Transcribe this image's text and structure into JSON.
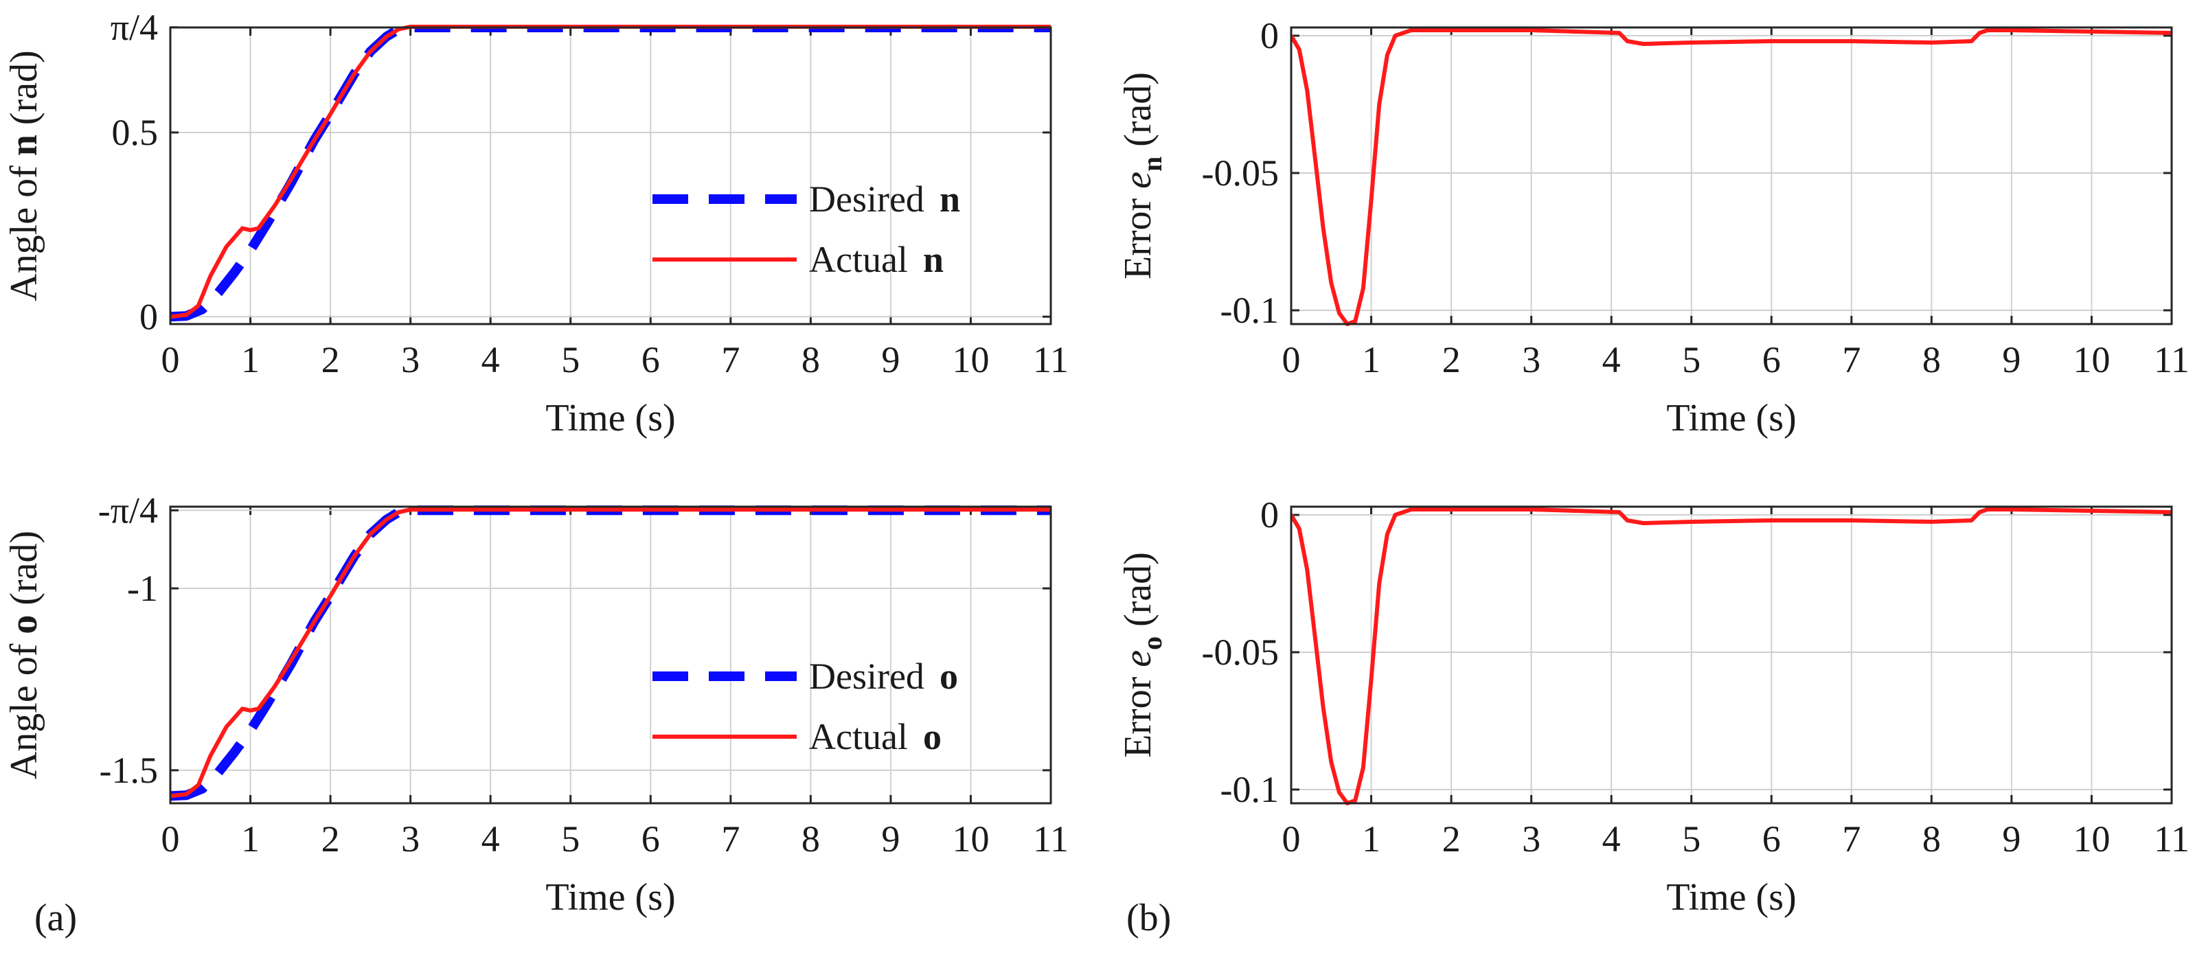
{
  "panel_labels": {
    "a": "(a)",
    "b": "(b)"
  },
  "colors": {
    "desired": "#0a0aff",
    "actual": "#ff1a1a"
  },
  "chart_data": [
    {
      "id": "a-top",
      "type": "line",
      "xlabel": "Time (s)",
      "ylabel": {
        "prefix": "Angle of ",
        "symbol": "n",
        "suffix": " (rad)"
      },
      "xlim": [
        0,
        11
      ],
      "ylim": [
        -0.02,
        0.785
      ],
      "xticks": [
        0,
        1,
        2,
        3,
        4,
        5,
        6,
        7,
        8,
        9,
        10,
        11
      ],
      "yticks": [
        {
          "v": 0,
          "label": "0"
        },
        {
          "v": 0.5,
          "label": "0.5"
        },
        {
          "v": 0.7854,
          "label": "π/4"
        }
      ],
      "grid": true,
      "legend": {
        "position": "bottom-right",
        "entries": [
          {
            "label": "Desired",
            "symbol": "n"
          },
          {
            "label": "Actual",
            "symbol": "n"
          }
        ]
      },
      "series": [
        {
          "name": "Desired n",
          "style": "dashed",
          "x": [
            0,
            0.2,
            0.4,
            0.6,
            0.8,
            1.0,
            1.2,
            1.5,
            1.8,
            2.0,
            2.3,
            2.5,
            2.7,
            2.85,
            3.0,
            4,
            5,
            6,
            7,
            8,
            9,
            10,
            11
          ],
          "y": [
            0,
            0.002,
            0.02,
            0.065,
            0.12,
            0.18,
            0.25,
            0.36,
            0.48,
            0.55,
            0.66,
            0.72,
            0.76,
            0.78,
            0.785,
            0.785,
            0.785,
            0.785,
            0.785,
            0.785,
            0.785,
            0.785,
            0.785
          ]
        },
        {
          "name": "Actual n",
          "style": "solid",
          "x": [
            0,
            0.2,
            0.35,
            0.5,
            0.7,
            0.9,
            1.0,
            1.1,
            1.3,
            1.5,
            1.8,
            2.0,
            2.3,
            2.5,
            2.7,
            2.85,
            3.0,
            4,
            5,
            6,
            7,
            8,
            9,
            10,
            11
          ],
          "y": [
            0,
            0.005,
            0.03,
            0.11,
            0.19,
            0.24,
            0.235,
            0.24,
            0.3,
            0.37,
            0.48,
            0.55,
            0.66,
            0.72,
            0.76,
            0.78,
            0.787,
            0.787,
            0.787,
            0.787,
            0.787,
            0.787,
            0.787,
            0.787,
            0.787
          ]
        }
      ]
    },
    {
      "id": "b-top",
      "type": "line",
      "xlabel": "Time (s)",
      "ylabel": {
        "prefix": "Error  ",
        "italic": "e",
        "sub": "n",
        "suffix": " (rad)"
      },
      "xlim": [
        0,
        11
      ],
      "ylim": [
        -0.105,
        0.003
      ],
      "xticks": [
        0,
        1,
        2,
        3,
        4,
        5,
        6,
        7,
        8,
        9,
        10,
        11
      ],
      "yticks": [
        {
          "v": 0,
          "label": "0"
        },
        {
          "v": -0.05,
          "label": "-0.05"
        },
        {
          "v": -0.1,
          "label": "-0.1"
        }
      ],
      "grid": true,
      "series": [
        {
          "name": "Error e_n",
          "style": "solid",
          "x": [
            0,
            0.1,
            0.2,
            0.3,
            0.4,
            0.5,
            0.6,
            0.7,
            0.8,
            0.9,
            1.0,
            1.1,
            1.2,
            1.3,
            1.5,
            2,
            3,
            4.1,
            4.2,
            4.4,
            5,
            6,
            7,
            8,
            8.5,
            8.6,
            8.7,
            9,
            10,
            11
          ],
          "y": [
            0,
            -0.005,
            -0.02,
            -0.045,
            -0.07,
            -0.09,
            -0.101,
            -0.105,
            -0.104,
            -0.092,
            -0.06,
            -0.025,
            -0.007,
            0,
            0.002,
            0.002,
            0.002,
            0.001,
            -0.002,
            -0.003,
            -0.0025,
            -0.002,
            -0.002,
            -0.0025,
            -0.002,
            0.001,
            0.002,
            0.002,
            0.0015,
            0.001
          ]
        }
      ]
    },
    {
      "id": "a-bottom",
      "type": "line",
      "xlabel": "Time (s)",
      "ylabel": {
        "prefix": "Angle of ",
        "symbol": "o",
        "suffix": " (rad)"
      },
      "xlim": [
        0,
        11
      ],
      "ylim": [
        -1.5908,
        -0.7754
      ],
      "xticks": [
        0,
        1,
        2,
        3,
        4,
        5,
        6,
        7,
        8,
        9,
        10,
        11
      ],
      "yticks": [
        {
          "v": -0.7854,
          "label": "-π/4"
        },
        {
          "v": -1,
          "label": "-1"
        },
        {
          "v": -1.5,
          "label": "-1.5"
        }
      ],
      "grid": true,
      "legend": {
        "position": "bottom-right",
        "entries": [
          {
            "label": "Desired",
            "symbol": "o"
          },
          {
            "label": "Actual",
            "symbol": "o"
          }
        ]
      },
      "series": [
        {
          "name": "Desired o",
          "style": "dashed",
          "x": [
            0,
            0.2,
            0.4,
            0.6,
            0.8,
            1.0,
            1.2,
            1.5,
            1.8,
            2.0,
            2.3,
            2.5,
            2.7,
            2.85,
            3.0,
            4,
            5,
            6,
            7,
            8,
            9,
            10,
            11
          ],
          "y": [
            -1.5708,
            -1.5688,
            -1.5508,
            -1.5058,
            -1.4508,
            -1.3908,
            -1.3208,
            -1.2108,
            -1.0908,
            -1.0208,
            -0.9108,
            -0.8508,
            -0.8108,
            -0.7908,
            -0.7854,
            -0.7854,
            -0.7854,
            -0.7854,
            -0.7854,
            -0.7854,
            -0.7854,
            -0.7854,
            -0.7854
          ]
        },
        {
          "name": "Actual o",
          "style": "solid",
          "x": [
            0,
            0.2,
            0.35,
            0.5,
            0.7,
            0.9,
            1.0,
            1.1,
            1.3,
            1.5,
            1.8,
            2.0,
            2.3,
            2.5,
            2.7,
            2.85,
            3.0,
            4,
            5,
            6,
            7,
            8,
            9,
            10,
            11
          ],
          "y": [
            -1.5708,
            -1.5658,
            -1.5408,
            -1.4608,
            -1.3808,
            -1.3308,
            -1.3358,
            -1.3308,
            -1.2708,
            -1.2008,
            -1.0908,
            -1.0208,
            -0.9108,
            -0.8508,
            -0.8108,
            -0.7908,
            -0.7834,
            -0.7834,
            -0.7834,
            -0.7834,
            -0.7834,
            -0.7834,
            -0.7834,
            -0.7834,
            -0.7834
          ]
        }
      ]
    },
    {
      "id": "b-bottom",
      "type": "line",
      "xlabel": "Time (s)",
      "ylabel": {
        "prefix": "Error  ",
        "italic": "e",
        "sub": "o",
        "suffix": " (rad)"
      },
      "xlim": [
        0,
        11
      ],
      "ylim": [
        -0.105,
        0.003
      ],
      "xticks": [
        0,
        1,
        2,
        3,
        4,
        5,
        6,
        7,
        8,
        9,
        10,
        11
      ],
      "yticks": [
        {
          "v": 0,
          "label": "0"
        },
        {
          "v": -0.05,
          "label": "-0.05"
        },
        {
          "v": -0.1,
          "label": "-0.1"
        }
      ],
      "grid": true,
      "series": [
        {
          "name": "Error e_o",
          "style": "solid",
          "x": [
            0,
            0.1,
            0.2,
            0.3,
            0.4,
            0.5,
            0.6,
            0.7,
            0.8,
            0.9,
            1.0,
            1.1,
            1.2,
            1.3,
            1.5,
            2,
            3,
            4.1,
            4.2,
            4.4,
            5,
            6,
            7,
            8,
            8.5,
            8.6,
            8.7,
            9,
            10,
            11
          ],
          "y": [
            0,
            -0.005,
            -0.02,
            -0.045,
            -0.07,
            -0.09,
            -0.101,
            -0.105,
            -0.104,
            -0.092,
            -0.06,
            -0.025,
            -0.007,
            0,
            0.002,
            0.002,
            0.002,
            0.001,
            -0.002,
            -0.003,
            -0.0025,
            -0.002,
            -0.002,
            -0.0025,
            -0.002,
            0.001,
            0.002,
            0.002,
            0.0015,
            0.001
          ]
        }
      ]
    }
  ]
}
